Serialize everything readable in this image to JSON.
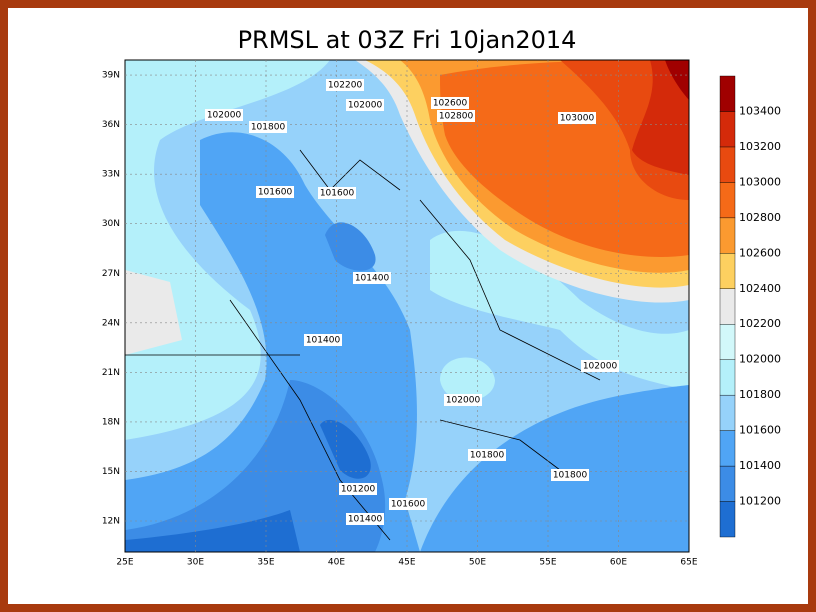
{
  "title": "PRMSL at 03Z Fri 10jan2014",
  "map": {
    "lon_ticks": [
      "25E",
      "30E",
      "35E",
      "40E",
      "45E",
      "50E",
      "55E",
      "60E",
      "65E"
    ],
    "lat_ticks": [
      "12N",
      "15N",
      "18N",
      "21N",
      "24N",
      "27N",
      "30N",
      "33N",
      "36N",
      "39N"
    ],
    "contour_labels": [
      "102200",
      "102000",
      "101800",
      "102000",
      "102600",
      "102800",
      "103000",
      "101600",
      "101600",
      "101400",
      "101400",
      "102000",
      "102000",
      "101800",
      "101800",
      "101200",
      "101600",
      "101400"
    ]
  },
  "colorbar": {
    "labels": [
      "101200",
      "101400",
      "101600",
      "101800",
      "102000",
      "102200",
      "102400",
      "102600",
      "102800",
      "103000",
      "103200",
      "103400"
    ],
    "colors": [
      "#1e6ed2",
      "#3c8ce6",
      "#50a5f5",
      "#96d2fa",
      "#b4f0fa",
      "#d2f8fa",
      "#eaeaea",
      "#fdd060",
      "#fb9a30",
      "#f56a18",
      "#e84a10",
      "#d42a0a",
      "#a00000"
    ]
  }
}
